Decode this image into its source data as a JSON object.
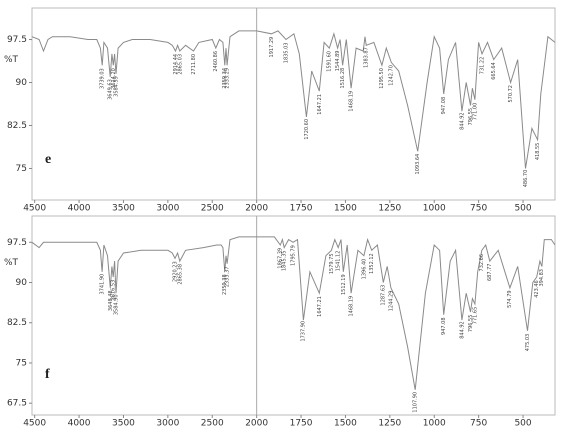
{
  "chart_data": [
    {
      "type": "line",
      "label": "e",
      "ylabel": "%T",
      "color": "#8a8a8a",
      "xlim": [
        4530,
        320
      ],
      "xticks": [
        4500,
        4000,
        3500,
        3000,
        2500,
        2000,
        1750,
        1500,
        1250,
        1000,
        750,
        500
      ],
      "ylim": [
        69.5,
        103
      ],
      "yticks": [
        75,
        82.5,
        90,
        97.5
      ],
      "vline": 2000,
      "x": [
        4530,
        4450,
        4400,
        4350,
        4300,
        4100,
        3900,
        3800,
        3760,
        3739,
        3720,
        3680,
        3649,
        3630,
        3614,
        3600,
        3584,
        3560,
        3500,
        3400,
        3200,
        3000,
        2950,
        2914,
        2890,
        2865,
        2800,
        2711,
        2650,
        2500,
        2460,
        2420,
        2380,
        2359,
        2345,
        2333,
        2300,
        2200,
        2100,
        2000,
        1917,
        1880,
        1835,
        1790,
        1760,
        1720,
        1690,
        1647,
        1620,
        1591,
        1565,
        1544,
        1530,
        1516,
        1495,
        1468,
        1440,
        1400,
        1390,
        1383,
        1340,
        1295,
        1270,
        1242,
        1200,
        1150,
        1093,
        1040,
        1000,
        970,
        947,
        920,
        880,
        844,
        820,
        796,
        785,
        771,
        750,
        731,
        700,
        665,
        620,
        570,
        530,
        486,
        450,
        418,
        400,
        360,
        320
      ],
      "values": [
        98,
        97.5,
        95.5,
        97.5,
        98,
        98,
        97.5,
        97.5,
        96,
        93,
        97,
        96,
        91,
        95,
        93,
        95,
        91.5,
        96,
        97,
        97.5,
        97.5,
        97,
        96.5,
        95.5,
        96.5,
        95.5,
        96.5,
        95.5,
        97,
        97.5,
        96,
        97.5,
        97,
        93,
        96,
        93,
        98,
        99,
        99,
        99,
        98.5,
        99,
        97.5,
        98.5,
        95,
        84,
        92,
        88.5,
        97,
        96,
        98.5,
        96,
        97.5,
        93,
        97.5,
        89,
        96,
        95.5,
        98,
        96.5,
        97,
        93,
        96,
        93.5,
        92,
        86,
        78,
        90,
        98,
        96,
        88,
        94,
        97,
        85,
        90,
        86,
        89,
        87,
        97,
        95,
        97,
        94,
        96,
        90,
        94,
        75,
        82,
        80,
        88,
        98,
        97
      ],
      "peaks": [
        {
          "x": 3739.03,
          "label": "3739.03"
        },
        {
          "x": 3649.63,
          "label": "3649.63"
        },
        {
          "x": 3614.2,
          "label": "3614.20"
        },
        {
          "x": 3584.59,
          "label": "3584.59"
        },
        {
          "x": 2914.44,
          "label": "2914.44"
        },
        {
          "x": 2865.03,
          "label": "2865.03"
        },
        {
          "x": 2711.8,
          "label": "2711.80"
        },
        {
          "x": 2460.86,
          "label": "2460.86"
        },
        {
          "x": 2359.34,
          "label": "2359.34"
        },
        {
          "x": 2333.29,
          "label": "2333.29"
        },
        {
          "x": 1917.29,
          "label": "1917.29"
        },
        {
          "x": 1835.03,
          "label": "1835.03"
        },
        {
          "x": 1720.6,
          "label": "1720.60"
        },
        {
          "x": 1647.21,
          "label": "1647.21"
        },
        {
          "x": 1591.6,
          "label": "1591.60"
        },
        {
          "x": 1544.89,
          "label": "1544.89"
        },
        {
          "x": 1516.28,
          "label": "1516.28"
        },
        {
          "x": 1468.19,
          "label": "1468.19"
        },
        {
          "x": 1383.87,
          "label": "1383.87"
        },
        {
          "x": 1295.5,
          "label": "1295.50"
        },
        {
          "x": 1242.7,
          "label": "1242.70"
        },
        {
          "x": 1093.64,
          "label": "1093.64"
        },
        {
          "x": 947.08,
          "label": "947.08"
        },
        {
          "x": 844.92,
          "label": "844.92"
        },
        {
          "x": 796.55,
          "label": "796.55"
        },
        {
          "x": 771.0,
          "label": "771.00"
        },
        {
          "x": 731.22,
          "label": "731.22"
        },
        {
          "x": 665.64,
          "label": "665.64"
        },
        {
          "x": 570.72,
          "label": "570.72"
        },
        {
          "x": 486.7,
          "label": "486.70"
        },
        {
          "x": 418.55,
          "label": "418.55"
        }
      ]
    },
    {
      "type": "line",
      "label": "f",
      "ylabel": "%T",
      "color": "#8a8a8a",
      "xlim": [
        4530,
        320
      ],
      "xticks": [
        4500,
        4000,
        3500,
        3000,
        2500,
        2000,
        1750,
        1500,
        1250,
        1000,
        750,
        500
      ],
      "ylim": [
        65.3,
        102.4
      ],
      "yticks": [
        67.5,
        75,
        82.5,
        90,
        97.5
      ],
      "vline": 2000,
      "x": [
        4530,
        4450,
        4400,
        4300,
        4100,
        3900,
        3800,
        3760,
        3741,
        3720,
        3680,
        3648,
        3630,
        3616,
        3600,
        3584,
        3560,
        3500,
        3300,
        3000,
        2950,
        2920,
        2890,
        2865,
        2800,
        2600,
        2450,
        2400,
        2380,
        2359,
        2345,
        2333,
        2300,
        2200,
        2000,
        1900,
        1867,
        1855,
        1845,
        1820,
        1795,
        1770,
        1737,
        1700,
        1647,
        1610,
        1579,
        1560,
        1541,
        1525,
        1512,
        1490,
        1468,
        1430,
        1396,
        1375,
        1352,
        1320,
        1287,
        1265,
        1244,
        1200,
        1150,
        1107,
        1050,
        1000,
        970,
        947,
        910,
        880,
        844,
        820,
        796,
        785,
        771,
        755,
        732,
        710,
        687,
        640,
        574,
        530,
        475,
        445,
        423,
        405,
        394,
        380,
        340,
        320
      ],
      "values": [
        97.5,
        96.5,
        97.5,
        97.5,
        97.5,
        97.5,
        97.5,
        96,
        92,
        97,
        95,
        89,
        93,
        91,
        94,
        88,
        94,
        95.5,
        96,
        96,
        95.5,
        94.5,
        95.5,
        94,
        96,
        96.5,
        97,
        97,
        96.5,
        92,
        95,
        93.5,
        98,
        98.5,
        98.5,
        98.5,
        97,
        98,
        96.5,
        98,
        97.5,
        98,
        83,
        92,
        88,
        95,
        96,
        98,
        96.5,
        98,
        92,
        97,
        88,
        96,
        95,
        98,
        96,
        97,
        90,
        93,
        89,
        86,
        78,
        70,
        88,
        97,
        96,
        84,
        94,
        96,
        83,
        88,
        84.5,
        87,
        86,
        92,
        96,
        97,
        94,
        96,
        89,
        93,
        81,
        90,
        91,
        94,
        93,
        98,
        98,
        97
      ],
      "peaks": [
        {
          "x": 3741.9,
          "label": "3741.90"
        },
        {
          "x": 3648.48,
          "label": "3648.48"
        },
        {
          "x": 3616.53,
          "label": "3616.53"
        },
        {
          "x": 3584.9,
          "label": "3584.90"
        },
        {
          "x": 2920.23,
          "label": "2920.23"
        },
        {
          "x": 2865.38,
          "label": "2865.38"
        },
        {
          "x": 2359.38,
          "label": "2359.38"
        },
        {
          "x": 2333.37,
          "label": "2333.37"
        },
        {
          "x": 1867.39,
          "label": "1867.39"
        },
        {
          "x": 1845.35,
          "label": "1845.35"
        },
        {
          "x": 1795.79,
          "label": "1795.79"
        },
        {
          "x": 1737.9,
          "label": "1737.90"
        },
        {
          "x": 1647.21,
          "label": "1647.21"
        },
        {
          "x": 1579.75,
          "label": "1579.75"
        },
        {
          "x": 1541.12,
          "label": "1541.12"
        },
        {
          "x": 1512.19,
          "label": "1512.19"
        },
        {
          "x": 1468.19,
          "label": "1468.19"
        },
        {
          "x": 1396.4,
          "label": "1396.40"
        },
        {
          "x": 1352.12,
          "label": "1352.12"
        },
        {
          "x": 1287.63,
          "label": "1287.63"
        },
        {
          "x": 1244.29,
          "label": "1244.29"
        },
        {
          "x": 1107.9,
          "label": "1107.90"
        },
        {
          "x": 947.08,
          "label": "947.08"
        },
        {
          "x": 844.92,
          "label": "844.92"
        },
        {
          "x": 796.55,
          "label": "796.55"
        },
        {
          "x": 771.65,
          "label": "771.65"
        },
        {
          "x": 732.66,
          "label": "732.66"
        },
        {
          "x": 687.77,
          "label": "687.77"
        },
        {
          "x": 574.79,
          "label": "574.79"
        },
        {
          "x": 475.03,
          "label": "475.03"
        },
        {
          "x": 423.46,
          "label": "423.46"
        },
        {
          "x": 394.83,
          "label": "394.83"
        }
      ]
    }
  ]
}
